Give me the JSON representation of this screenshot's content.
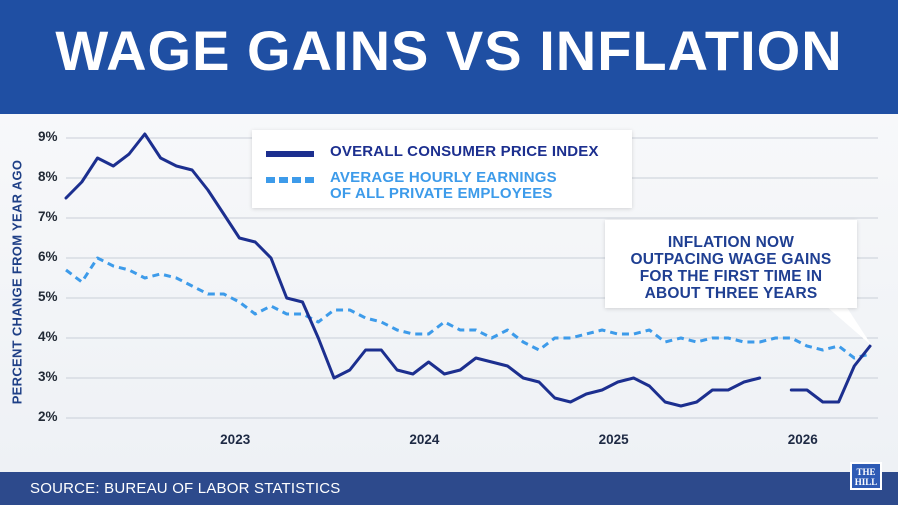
{
  "title": "WAGE GAINS VS INFLATION",
  "source": "SOURCE: BUREAU OF LABOR STATISTICS",
  "logo": {
    "line1": "THE",
    "line2": "HILL"
  },
  "annotation": "INFLATION NOW\nOUTPACING WAGE GAINS\nFOR THE FIRST TIME IN\nABOUT THREE YEARS",
  "colors": {
    "header": "#1f4fa3",
    "cpi": "#1c2f8f",
    "wages": "#3d9bea",
    "footer": "#2d4a8c"
  },
  "chart_data": {
    "type": "line",
    "ylabel": "PERCENT CHANGE FROM YEAR AGO",
    "xlabel": "",
    "ylim": [
      2,
      9
    ],
    "yticks": [
      "9%",
      "8%",
      "7%",
      "6%",
      "5%",
      "4%",
      "3%",
      "2%"
    ],
    "xticks": [
      "2023",
      "2024",
      "2025",
      "2026"
    ],
    "grid": true,
    "legend": "top-center",
    "series": [
      {
        "name": "OVERALL CONSUMER PRICE INDEX",
        "style": "solid",
        "points": [
          [
            "2022-01",
            7.5
          ],
          [
            "2022-02",
            7.9
          ],
          [
            "2022-03",
            8.5
          ],
          [
            "2022-04",
            8.3
          ],
          [
            "2022-05",
            8.6
          ],
          [
            "2022-06",
            9.1
          ],
          [
            "2022-07",
            8.5
          ],
          [
            "2022-08",
            8.3
          ],
          [
            "2022-09",
            8.2
          ],
          [
            "2022-10",
            7.7
          ],
          [
            "2022-11",
            7.1
          ],
          [
            "2022-12",
            6.5
          ],
          [
            "2023-01",
            6.4
          ],
          [
            "2023-02",
            6.0
          ],
          [
            "2023-03",
            5.0
          ],
          [
            "2023-04",
            4.9
          ],
          [
            "2023-05",
            4.0
          ],
          [
            "2023-06",
            3.0
          ],
          [
            "2023-07",
            3.2
          ],
          [
            "2023-08",
            3.7
          ],
          [
            "2023-09",
            3.7
          ],
          [
            "2023-10",
            3.2
          ],
          [
            "2023-11",
            3.1
          ],
          [
            "2023-12",
            3.4
          ],
          [
            "2024-01",
            3.1
          ],
          [
            "2024-02",
            3.2
          ],
          [
            "2024-03",
            3.5
          ],
          [
            "2024-04",
            3.4
          ],
          [
            "2024-05",
            3.3
          ],
          [
            "2024-06",
            3.0
          ],
          [
            "2024-07",
            2.9
          ],
          [
            "2024-08",
            2.5
          ],
          [
            "2024-09",
            2.4
          ],
          [
            "2024-10",
            2.6
          ],
          [
            "2024-11",
            2.7
          ],
          [
            "2024-12",
            2.9
          ],
          [
            "2025-01",
            3.0
          ],
          [
            "2025-02",
            2.8
          ],
          [
            "2025-03",
            2.4
          ],
          [
            "2025-04",
            2.3
          ],
          [
            "2025-05",
            2.4
          ],
          [
            "2025-06",
            2.7
          ],
          [
            "2025-07",
            2.7
          ],
          [
            "2025-08",
            2.9
          ],
          [
            "2025-09",
            3.0
          ],
          null,
          [
            "2025-11",
            2.7
          ],
          [
            "2025-12",
            2.7
          ],
          [
            "2026-01",
            2.4
          ],
          [
            "2026-02",
            2.4
          ],
          [
            "2026-03",
            3.3
          ],
          [
            "2026-04",
            3.8
          ]
        ]
      },
      {
        "name": "AVERAGE HOURLY EARNINGS\nOF ALL PRIVATE EMPLOYEES",
        "style": "dashed",
        "points": [
          [
            "2022-01",
            5.7
          ],
          [
            "2022-02",
            5.4
          ],
          [
            "2022-03",
            6.0
          ],
          [
            "2022-04",
            5.8
          ],
          [
            "2022-05",
            5.7
          ],
          [
            "2022-06",
            5.5
          ],
          [
            "2022-07",
            5.6
          ],
          [
            "2022-08",
            5.5
          ],
          [
            "2022-09",
            5.3
          ],
          [
            "2022-10",
            5.1
          ],
          [
            "2022-11",
            5.1
          ],
          [
            "2022-12",
            4.9
          ],
          [
            "2023-01",
            4.6
          ],
          [
            "2023-02",
            4.8
          ],
          [
            "2023-03",
            4.6
          ],
          [
            "2023-04",
            4.6
          ],
          [
            "2023-05",
            4.4
          ],
          [
            "2023-06",
            4.7
          ],
          [
            "2023-07",
            4.7
          ],
          [
            "2023-08",
            4.5
          ],
          [
            "2023-09",
            4.4
          ],
          [
            "2023-10",
            4.2
          ],
          [
            "2023-11",
            4.1
          ],
          [
            "2023-12",
            4.1
          ],
          [
            "2024-01",
            4.4
          ],
          [
            "2024-02",
            4.2
          ],
          [
            "2024-03",
            4.2
          ],
          [
            "2024-04",
            4.0
          ],
          [
            "2024-05",
            4.2
          ],
          [
            "2024-06",
            3.9
          ],
          [
            "2024-07",
            3.7
          ],
          [
            "2024-08",
            4.0
          ],
          [
            "2024-09",
            4.0
          ],
          [
            "2024-10",
            4.1
          ],
          [
            "2024-11",
            4.2
          ],
          [
            "2024-12",
            4.1
          ],
          [
            "2025-01",
            4.1
          ],
          [
            "2025-02",
            4.2
          ],
          [
            "2025-03",
            3.9
          ],
          [
            "2025-04",
            4.0
          ],
          [
            "2025-05",
            3.9
          ],
          [
            "2025-06",
            4.0
          ],
          [
            "2025-07",
            4.0
          ],
          [
            "2025-08",
            3.9
          ],
          [
            "2025-09",
            3.9
          ],
          [
            "2025-10",
            4.0
          ],
          [
            "2025-11",
            4.0
          ],
          [
            "2025-12",
            3.8
          ],
          [
            "2026-01",
            3.7
          ],
          [
            "2026-02",
            3.8
          ],
          [
            "2026-03",
            3.5
          ],
          [
            "2026-04",
            3.6
          ]
        ]
      }
    ]
  }
}
